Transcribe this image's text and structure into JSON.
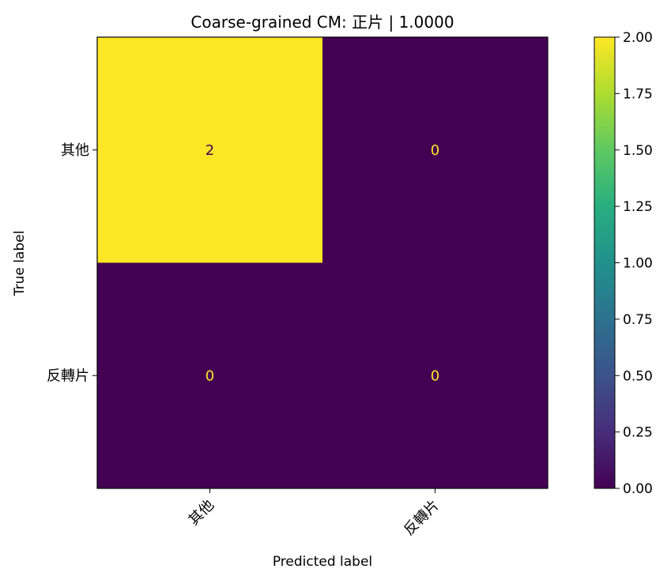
{
  "chart_data": {
    "type": "heatmap",
    "title": "Coarse-grained CM: 正片 | 1.0000",
    "xlabel": "Predicted label",
    "ylabel": "True label",
    "x_categories": [
      "其他",
      "反轉片"
    ],
    "y_categories": [
      "其他",
      "反轉片"
    ],
    "values": [
      [
        2,
        0
      ],
      [
        0,
        0
      ]
    ],
    "colormap": "viridis",
    "colorbar": {
      "min": 0,
      "max": 2,
      "ticks": [
        0,
        0.25,
        0.5,
        0.75,
        1.0,
        1.25,
        1.5,
        1.75,
        2.0
      ],
      "tick_labels": [
        "0.00",
        "0.25",
        "0.50",
        "0.75",
        "1.00",
        "1.25",
        "1.50",
        "1.75",
        "2.00"
      ]
    },
    "colors": {
      "low": "#440154",
      "high": "#fde725",
      "text_on_low": "#fde725",
      "text_on_high": "#440154"
    }
  }
}
